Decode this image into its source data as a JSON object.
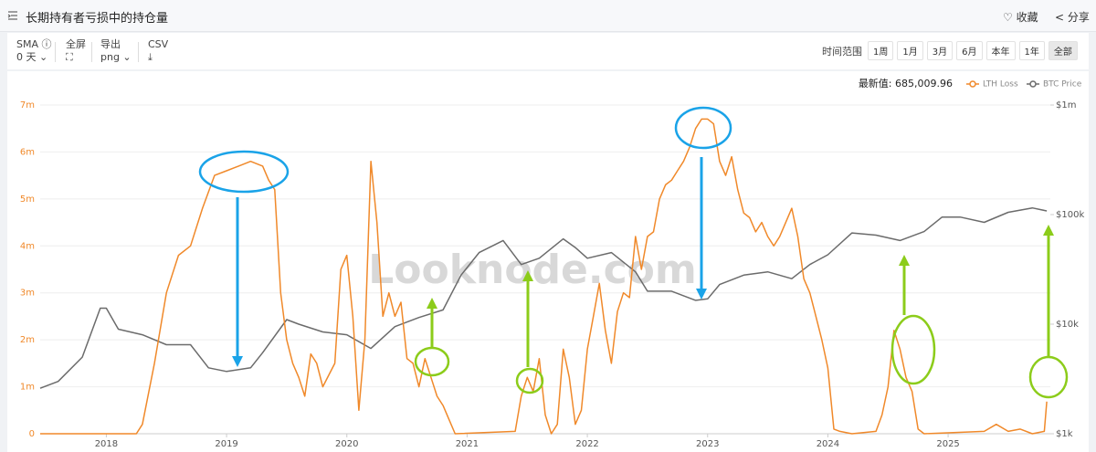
{
  "header": {
    "title": "长期持有者亏损中的持仓量",
    "favorite": "收藏",
    "share": "分享"
  },
  "toolbar": {
    "sma": "SMA",
    "sma_value": "0 天",
    "fullscreen": "全屏",
    "export": "导出",
    "export_format": "png",
    "csv": "CSV",
    "range_label": "时间范围",
    "ranges": [
      "1周",
      "1月",
      "3月",
      "6月",
      "本年",
      "1年",
      "全部"
    ]
  },
  "chart_data": {
    "type": "line",
    "latest_text": "最新值: 685,009.96",
    "watermark": "Looknode.com",
    "xlim": [
      2017.45,
      2025.85
    ],
    "xticks": [
      2018,
      2019,
      2020,
      2021,
      2022,
      2023,
      2024,
      2025
    ],
    "ylim": [
      0,
      7000000
    ],
    "yticks": [
      0,
      {
        "value": 1000000,
        "label": "1m"
      },
      {
        "value": 2000000,
        "label": "2m"
      },
      {
        "value": 3000000,
        "label": "3m"
      },
      {
        "value": 4000000,
        "label": "4m"
      },
      {
        "value": 5000000,
        "label": "5m"
      },
      {
        "value": 6000000,
        "label": "6m"
      },
      {
        "value": 7000000,
        "label": "7m"
      }
    ],
    "y2lim": [
      1000,
      1000000
    ],
    "y2scale": "log",
    "y2ticks": [
      {
        "value": 1000,
        "label": "$1k"
      },
      {
        "value": 10000,
        "label": "$10k"
      },
      {
        "value": 100000,
        "label": "$100k"
      },
      {
        "value": 1000000,
        "label": "$1m"
      }
    ],
    "grid": true,
    "legend": "top-right",
    "series": [
      {
        "name": "LTH Loss",
        "color": "#f0892a",
        "axis": "y",
        "x": [
          2017.45,
          2018.25,
          2018.3,
          2018.4,
          2018.5,
          2018.6,
          2018.7,
          2018.8,
          2018.9,
          2019.0,
          2019.1,
          2019.2,
          2019.3,
          2019.35,
          2019.4,
          2019.45,
          2019.5,
          2019.55,
          2019.6,
          2019.65,
          2019.7,
          2019.75,
          2019.8,
          2019.9,
          2019.95,
          2020.0,
          2020.05,
          2020.1,
          2020.15,
          2020.2,
          2020.25,
          2020.3,
          2020.35,
          2020.4,
          2020.45,
          2020.5,
          2020.55,
          2020.6,
          2020.65,
          2020.7,
          2020.75,
          2020.8,
          2020.85,
          2020.9,
          2021.4,
          2021.45,
          2021.5,
          2021.55,
          2021.6,
          2021.65,
          2021.7,
          2021.75,
          2021.8,
          2021.85,
          2021.9,
          2021.95,
          2022.0,
          2022.05,
          2022.1,
          2022.15,
          2022.2,
          2022.25,
          2022.3,
          2022.35,
          2022.4,
          2022.45,
          2022.5,
          2022.55,
          2022.6,
          2022.65,
          2022.7,
          2022.75,
          2022.8,
          2022.85,
          2022.9,
          2022.95,
          2023.0,
          2023.05,
          2023.1,
          2023.15,
          2023.2,
          2023.25,
          2023.3,
          2023.35,
          2023.4,
          2023.45,
          2023.5,
          2023.55,
          2023.6,
          2023.65,
          2023.7,
          2023.75,
          2023.8,
          2023.85,
          2023.9,
          2023.95,
          2024.0,
          2024.05,
          2024.1,
          2024.2,
          2024.4,
          2024.45,
          2024.5,
          2024.55,
          2024.6,
          2024.65,
          2024.7,
          2024.75,
          2024.8,
          2025.3,
          2025.4,
          2025.5,
          2025.6,
          2025.7,
          2025.8,
          2025.82
        ],
        "values": [
          0,
          0,
          200000,
          1500000,
          3000000,
          3800000,
          4000000,
          4800000,
          5500000,
          5600000,
          5700000,
          5800000,
          5700000,
          5400000,
          5200000,
          3000000,
          2000000,
          1500000,
          1200000,
          800000,
          1700000,
          1500000,
          1000000,
          1500000,
          3500000,
          3800000,
          2500000,
          500000,
          2000000,
          5800000,
          4500000,
          2500000,
          3000000,
          2500000,
          2800000,
          1600000,
          1500000,
          1000000,
          1600000,
          1200000,
          800000,
          600000,
          300000,
          0,
          50000,
          800000,
          1200000,
          900000,
          1600000,
          400000,
          0,
          200000,
          1800000,
          1200000,
          200000,
          500000,
          1800000,
          2500000,
          3200000,
          2200000,
          1500000,
          2600000,
          3000000,
          2900000,
          4200000,
          3500000,
          4200000,
          4300000,
          5000000,
          5300000,
          5400000,
          5600000,
          5800000,
          6100000,
          6500000,
          6700000,
          6700000,
          6600000,
          5800000,
          5500000,
          5900000,
          5200000,
          4700000,
          4600000,
          4300000,
          4500000,
          4200000,
          4000000,
          4200000,
          4500000,
          4800000,
          4200000,
          3300000,
          3000000,
          2500000,
          2000000,
          1400000,
          100000,
          50000,
          0,
          50000,
          400000,
          1000000,
          2200000,
          1800000,
          1200000,
          900000,
          100000,
          0,
          50000,
          200000,
          50000,
          100000,
          0,
          50000,
          685010
        ]
      },
      {
        "name": "BTC Price",
        "color": "#6b6b6b",
        "axis": "y2",
        "x": [
          2017.45,
          2017.6,
          2017.8,
          2017.95,
          2018.0,
          2018.1,
          2018.3,
          2018.5,
          2018.7,
          2018.85,
          2019.0,
          2019.2,
          2019.3,
          2019.5,
          2019.6,
          2019.8,
          2020.0,
          2020.2,
          2020.4,
          2020.6,
          2020.8,
          2020.95,
          2021.1,
          2021.3,
          2021.45,
          2021.6,
          2021.8,
          2021.9,
          2022.0,
          2022.2,
          2022.4,
          2022.5,
          2022.7,
          2022.9,
          2023.0,
          2023.1,
          2023.3,
          2023.5,
          2023.7,
          2023.85,
          2024.0,
          2024.2,
          2024.4,
          2024.6,
          2024.8,
          2024.95,
          2025.1,
          2025.3,
          2025.5,
          2025.7,
          2025.82
        ],
        "values": [
          2600,
          3000,
          5000,
          14000,
          14000,
          9000,
          8000,
          6500,
          6500,
          4000,
          3700,
          4000,
          5500,
          11000,
          10000,
          8500,
          8000,
          6000,
          9500,
          11500,
          13500,
          28000,
          45000,
          58000,
          35000,
          40000,
          60000,
          50000,
          40000,
          45000,
          30000,
          20000,
          20000,
          16500,
          17000,
          23000,
          28000,
          30000,
          26000,
          35000,
          43000,
          68000,
          65000,
          58000,
          70000,
          95000,
          95000,
          85000,
          105000,
          115000,
          108000
        ]
      }
    ]
  }
}
